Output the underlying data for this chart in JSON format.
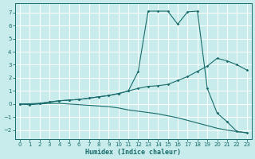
{
  "xlabel": "Humidex (Indice chaleur)",
  "bg_color": "#c8ecec",
  "line_color": "#1a6b6b",
  "grid_color": "#ffffff",
  "xlim": [
    -0.5,
    23.5
  ],
  "ylim": [
    -2.7,
    7.7
  ],
  "xticks": [
    0,
    1,
    2,
    3,
    4,
    5,
    6,
    7,
    8,
    9,
    10,
    11,
    12,
    13,
    14,
    15,
    16,
    17,
    18,
    19,
    20,
    21,
    22,
    23
  ],
  "yticks": [
    -2,
    -1,
    0,
    1,
    2,
    3,
    4,
    5,
    6,
    7
  ],
  "line1_x": [
    0,
    1,
    2,
    3,
    4,
    5,
    6,
    7,
    8,
    9,
    10,
    11,
    12,
    13,
    14,
    15,
    16,
    17,
    18,
    19,
    20,
    21,
    22,
    23
  ],
  "line1_y": [
    0.0,
    -0.05,
    0.05,
    0.15,
    0.25,
    0.3,
    0.35,
    0.45,
    0.55,
    0.65,
    0.8,
    1.0,
    2.5,
    7.1,
    7.1,
    7.1,
    6.1,
    7.05,
    7.1,
    1.2,
    -0.7,
    -1.35,
    -2.1,
    -2.2
  ],
  "line2_x": [
    0,
    2,
    3,
    4,
    5,
    6,
    7,
    8,
    9,
    10,
    11,
    12,
    13,
    14,
    15,
    16,
    17,
    18,
    19,
    20,
    21,
    22,
    23
  ],
  "line2_y": [
    0.0,
    0.05,
    0.15,
    0.25,
    0.3,
    0.35,
    0.45,
    0.55,
    0.65,
    0.8,
    1.0,
    1.2,
    1.35,
    1.4,
    1.5,
    1.8,
    2.1,
    2.5,
    2.9,
    3.5,
    3.3,
    3.0,
    2.6
  ],
  "line3_x": [
    0,
    1,
    2,
    3,
    4,
    5,
    6,
    7,
    8,
    9,
    10,
    11,
    12,
    13,
    14,
    15,
    16,
    17,
    18,
    19,
    20,
    21,
    22,
    23
  ],
  "line3_y": [
    0.0,
    -0.05,
    0.0,
    0.05,
    0.05,
    0.0,
    -0.05,
    -0.1,
    -0.15,
    -0.2,
    -0.3,
    -0.45,
    -0.55,
    -0.65,
    -0.75,
    -0.9,
    -1.05,
    -1.25,
    -1.45,
    -1.65,
    -1.85,
    -2.0,
    -2.1,
    -2.2
  ]
}
